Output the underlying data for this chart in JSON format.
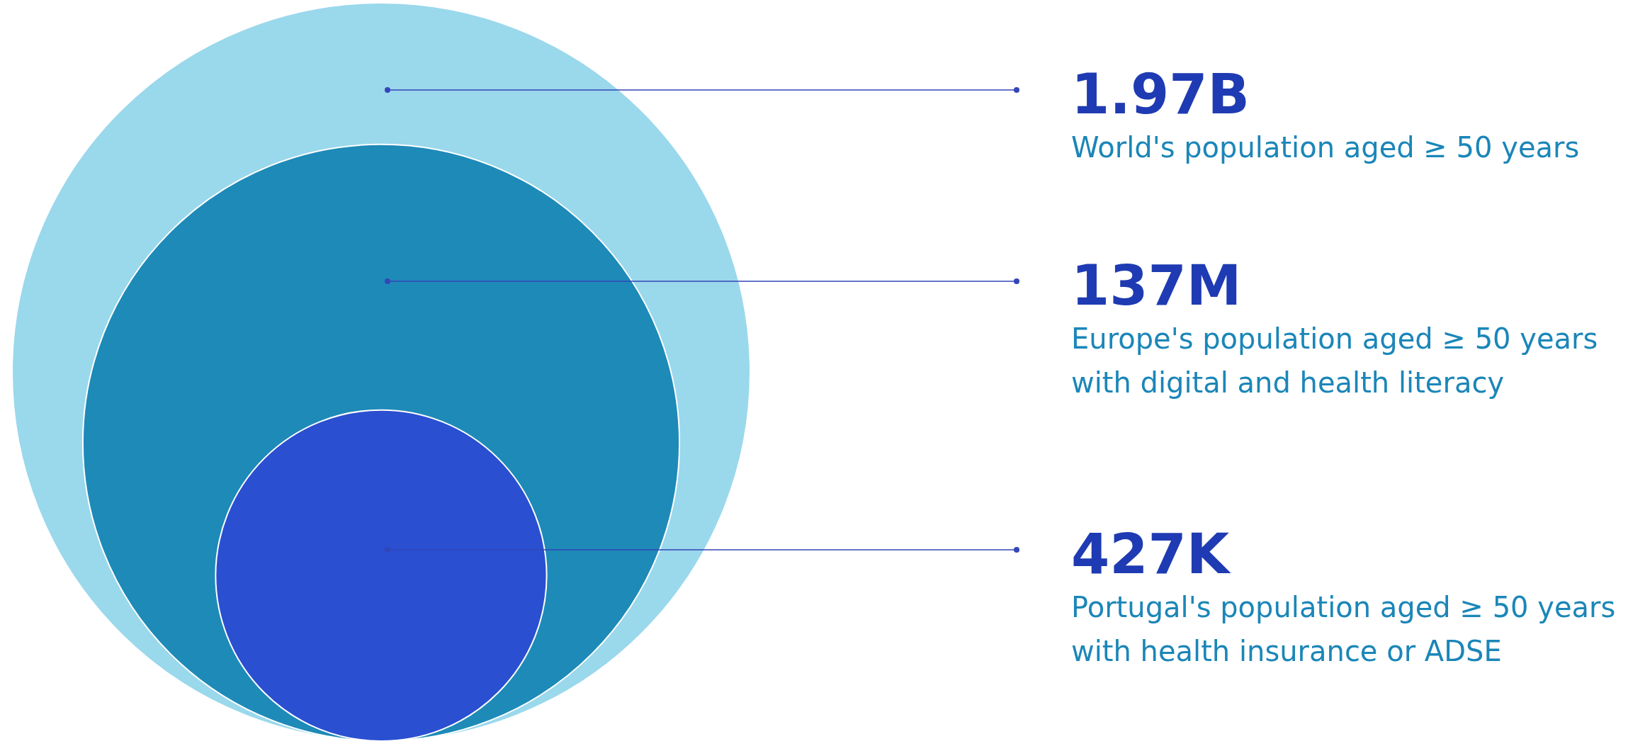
{
  "chart_data": {
    "type": "other",
    "categories": [
      "World's population aged ≥ 50 years",
      "Europe's population aged ≥ 50 years\nwith digital and health literacy",
      "Portugal's population aged ≥ 50 years\nwith health insurance or ADSE"
    ],
    "values": [
      1970000000,
      137000000,
      427000
    ],
    "value_labels": [
      "1.97B",
      "137M",
      "427K"
    ],
    "colors": [
      "#9ad8ec",
      "#1e8ab8",
      "#2a4fd0"
    ]
  }
}
